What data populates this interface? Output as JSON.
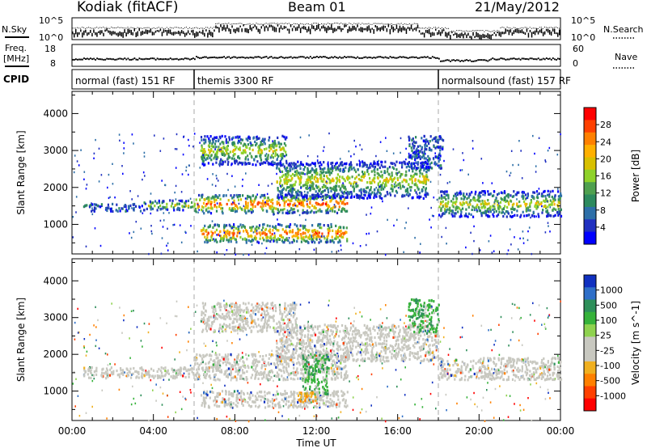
{
  "header": {
    "station": "Kodiak (fitACF)",
    "beam": "Beam 01",
    "date": "21/May/2012"
  },
  "left_labels": {
    "nsky": "N.Sky",
    "freq_line1": "Freq.",
    "freq_line2": "[MHz]",
    "cpid": "CPID"
  },
  "right_labels": {
    "nsearch": "N.Search",
    "nave": "Nave"
  },
  "strip_ticks": {
    "nsky_left": [
      "10^5",
      "10^0"
    ],
    "nsky_right": [
      "10^5",
      "10^0"
    ],
    "freq_left": [
      "18",
      "8"
    ],
    "nave_right": [
      "60",
      "0"
    ]
  },
  "cpid_segments": [
    {
      "label": "normal (fast) 151 RF"
    },
    {
      "label": "themis 3300 RF"
    },
    {
      "label": "normalsound (fast) 157 RF"
    }
  ],
  "chart_data": [
    {
      "type": "heatmap",
      "title": "Power",
      "ylabel": "Slant Range [km]",
      "ylim": [
        200,
        4600
      ],
      "yticks": [
        1000,
        2000,
        3000,
        4000
      ],
      "xticks": [
        "00:00",
        "04:00",
        "08:00",
        "12:00",
        "16:00",
        "20:00",
        "00:00"
      ],
      "xlim_hours": [
        0,
        24
      ],
      "colorbar": {
        "label": "Power [dB]",
        "ticks": [
          "28",
          "24",
          "20",
          "16",
          "12",
          "8",
          "4"
        ],
        "colors": [
          "#ff0000",
          "#ff4000",
          "#ff8000",
          "#ffb000",
          "#d8c000",
          "#8fd22a",
          "#4fa04f",
          "#2d8a5e",
          "#2d6fa8",
          "#2030c0",
          "#0000ff"
        ]
      },
      "bands": [
        {
          "t0": 0.5,
          "t1": 3.5,
          "r0": 1350,
          "r1": 1550,
          "level": "weak"
        },
        {
          "t0": 3.5,
          "t1": 6.0,
          "r0": 1380,
          "r1": 1650,
          "level": "medium"
        },
        {
          "t0": 6.0,
          "t1": 13.5,
          "r0": 1300,
          "r1": 1800,
          "level": "strong"
        },
        {
          "t0": 6.3,
          "t1": 13.5,
          "r0": 500,
          "r1": 1000,
          "level": "strong"
        },
        {
          "t0": 6.3,
          "t1": 10.5,
          "r0": 2600,
          "r1": 3400,
          "level": "medium"
        },
        {
          "t0": 10.0,
          "t1": 17.5,
          "r0": 1700,
          "r1": 2700,
          "level": "medium"
        },
        {
          "t0": 18.0,
          "t1": 24.0,
          "r0": 1200,
          "r1": 1900,
          "level": "medium"
        },
        {
          "t0": 16.5,
          "t1": 18.2,
          "r0": 2500,
          "r1": 3400,
          "level": "weak"
        }
      ]
    },
    {
      "type": "heatmap",
      "title": "Velocity",
      "ylabel": "Slant Range [km]",
      "xlabel": "Time UT",
      "ylim": [
        200,
        4600
      ],
      "yticks": [
        1000,
        2000,
        3000,
        4000
      ],
      "xticks": [
        "00:00",
        "04:00",
        "08:00",
        "12:00",
        "16:00",
        "20:00",
        "00:00"
      ],
      "xlim_hours": [
        0,
        24
      ],
      "colorbar": {
        "label": "Velocity [m s^-1]",
        "ticks": [
          "1000",
          "500",
          "100",
          "25",
          "-25",
          "-100",
          "-500",
          "-1000"
        ],
        "colors": [
          "#1030c0",
          "#2f6fc8",
          "#2e8f5a",
          "#36b23a",
          "#8fd24f",
          "#c8c8c0",
          "#c8c8c0",
          "#f0b020",
          "#ff8000",
          "#ff4000",
          "#ff0000"
        ]
      },
      "bands": [
        {
          "t0": 0.5,
          "t1": 6.0,
          "r0": 1350,
          "r1": 1650,
          "level": "ground"
        },
        {
          "t0": 6.0,
          "t1": 13.5,
          "r0": 1300,
          "r1": 2000,
          "level": "ground"
        },
        {
          "t0": 6.3,
          "t1": 13.5,
          "r0": 550,
          "r1": 1000,
          "level": "ground"
        },
        {
          "t0": 6.3,
          "t1": 11.0,
          "r0": 2600,
          "r1": 3400,
          "level": "ground"
        },
        {
          "t0": 10.0,
          "t1": 18.0,
          "r0": 1800,
          "r1": 2800,
          "level": "ground"
        },
        {
          "t0": 18.0,
          "t1": 24.0,
          "r0": 1300,
          "r1": 1900,
          "level": "ground"
        },
        {
          "t0": 11.3,
          "t1": 12.6,
          "r0": 900,
          "r1": 2000,
          "level": "positive"
        },
        {
          "t0": 11.0,
          "t1": 12.0,
          "r0": 700,
          "r1": 1000,
          "level": "negative"
        },
        {
          "t0": 16.5,
          "t1": 18.0,
          "r0": 2600,
          "r1": 3500,
          "level": "positive"
        }
      ]
    }
  ]
}
